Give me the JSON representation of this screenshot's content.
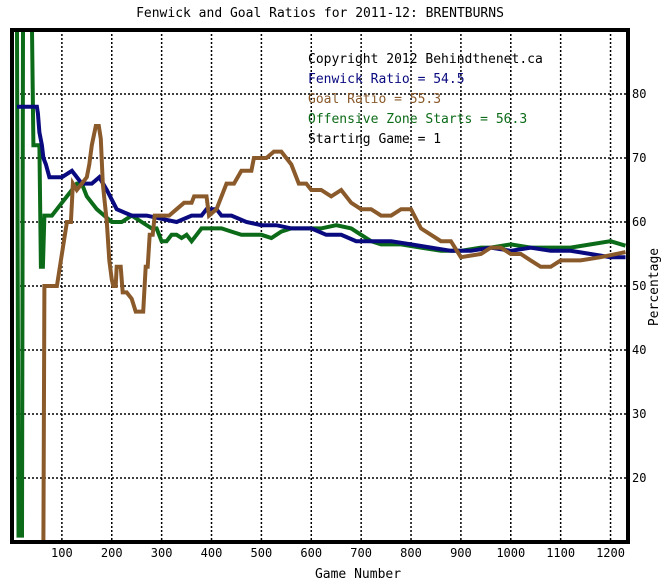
{
  "chart_data": {
    "type": "line",
    "title": "Fenwick and Goal Ratios for 2011-12: BRENTBURNS",
    "xlabel": "Game Number",
    "ylabel": "Percentage",
    "xlim": [
      0,
      1235
    ],
    "ylim": [
      10,
      90
    ],
    "x_ticks": [
      100,
      200,
      300,
      400,
      500,
      600,
      700,
      800,
      900,
      1000,
      1100,
      1200
    ],
    "y_ticks": [
      20,
      30,
      40,
      50,
      60,
      70,
      80
    ],
    "grid": true,
    "legend": [
      {
        "text": "Copyright 2012 Behindthenet.ca",
        "color": "#000000"
      },
      {
        "text": "Fenwick Ratio = 54.5",
        "color": "#0a0a80"
      },
      {
        "text": "Goal Ratio = 55.3",
        "color": "#8b5a2b"
      },
      {
        "text": "Offensive Zone Starts = 56.3",
        "color": "#0c6b18"
      },
      {
        "text": "Starting Game = 1",
        "color": "#000000"
      }
    ],
    "series": [
      {
        "name": "Fenwick Ratio",
        "color": "#0a0a80",
        "points": [
          [
            10,
            78
          ],
          [
            50,
            78
          ],
          [
            52,
            77
          ],
          [
            55,
            74
          ],
          [
            60,
            72
          ],
          [
            63,
            70
          ],
          [
            68,
            69
          ],
          [
            75,
            67
          ],
          [
            85,
            67
          ],
          [
            100,
            67
          ],
          [
            120,
            68
          ],
          [
            140,
            66
          ],
          [
            160,
            66
          ],
          [
            175,
            67
          ],
          [
            190,
            65
          ],
          [
            210,
            62
          ],
          [
            240,
            61
          ],
          [
            270,
            61
          ],
          [
            300,
            60.5
          ],
          [
            330,
            60
          ],
          [
            360,
            61
          ],
          [
            380,
            61
          ],
          [
            390,
            62
          ],
          [
            410,
            62
          ],
          [
            420,
            61
          ],
          [
            440,
            61
          ],
          [
            470,
            60
          ],
          [
            500,
            59.5
          ],
          [
            530,
            59.5
          ],
          [
            560,
            59
          ],
          [
            600,
            59
          ],
          [
            630,
            58
          ],
          [
            660,
            58
          ],
          [
            690,
            57
          ],
          [
            720,
            57
          ],
          [
            760,
            57
          ],
          [
            800,
            56.5
          ],
          [
            840,
            56
          ],
          [
            880,
            55.5
          ],
          [
            920,
            55.5
          ],
          [
            960,
            56
          ],
          [
            1000,
            55.5
          ],
          [
            1040,
            56
          ],
          [
            1080,
            55.5
          ],
          [
            1120,
            55.5
          ],
          [
            1160,
            55
          ],
          [
            1200,
            54.5
          ],
          [
            1230,
            54.5
          ]
        ]
      },
      {
        "name": "Goal Ratio",
        "color": "#8b5a2b",
        "points": [
          [
            60,
            10
          ],
          [
            63,
            10
          ],
          [
            65,
            50
          ],
          [
            90,
            50
          ],
          [
            100,
            55
          ],
          [
            110,
            60
          ],
          [
            118,
            60
          ],
          [
            122,
            66
          ],
          [
            130,
            65
          ],
          [
            140,
            66
          ],
          [
            150,
            67
          ],
          [
            155,
            69
          ],
          [
            160,
            72
          ],
          [
            168,
            75
          ],
          [
            174,
            75
          ],
          [
            178,
            73
          ],
          [
            182,
            66
          ],
          [
            190,
            60
          ],
          [
            195,
            54
          ],
          [
            200,
            51
          ],
          [
            203,
            50
          ],
          [
            208,
            50
          ],
          [
            210,
            53
          ],
          [
            218,
            53
          ],
          [
            222,
            49
          ],
          [
            230,
            49
          ],
          [
            240,
            48
          ],
          [
            248,
            46
          ],
          [
            258,
            46
          ],
          [
            263,
            46
          ],
          [
            268,
            53
          ],
          [
            272,
            53
          ],
          [
            276,
            58
          ],
          [
            282,
            58
          ],
          [
            286,
            61
          ],
          [
            300,
            61
          ],
          [
            315,
            61
          ],
          [
            330,
            62
          ],
          [
            345,
            63
          ],
          [
            360,
            63
          ],
          [
            365,
            64
          ],
          [
            390,
            64
          ],
          [
            395,
            61
          ],
          [
            410,
            62
          ],
          [
            430,
            66
          ],
          [
            445,
            66
          ],
          [
            460,
            68
          ],
          [
            480,
            68
          ],
          [
            485,
            70
          ],
          [
            510,
            70
          ],
          [
            525,
            71
          ],
          [
            540,
            71
          ],
          [
            550,
            70
          ],
          [
            560,
            69
          ],
          [
            575,
            66
          ],
          [
            590,
            66
          ],
          [
            600,
            65
          ],
          [
            620,
            65
          ],
          [
            640,
            64
          ],
          [
            660,
            65
          ],
          [
            680,
            63
          ],
          [
            700,
            62
          ],
          [
            720,
            62
          ],
          [
            740,
            61
          ],
          [
            760,
            61
          ],
          [
            780,
            62
          ],
          [
            800,
            62
          ],
          [
            820,
            59
          ],
          [
            840,
            58
          ],
          [
            860,
            57
          ],
          [
            880,
            57
          ],
          [
            900,
            54.5
          ],
          [
            940,
            55
          ],
          [
            960,
            56
          ],
          [
            980,
            56
          ],
          [
            1000,
            55
          ],
          [
            1020,
            55
          ],
          [
            1040,
            54
          ],
          [
            1060,
            53
          ],
          [
            1080,
            53
          ],
          [
            1100,
            54
          ],
          [
            1140,
            54
          ],
          [
            1180,
            54.5
          ],
          [
            1230,
            55.3
          ]
        ]
      },
      {
        "name": "Offensive Zone Starts",
        "color": "#0c6b18",
        "points": [
          [
            10,
            90
          ],
          [
            13,
            11
          ],
          [
            20,
            11
          ],
          [
            22,
            90
          ],
          [
            40,
            90
          ],
          [
            43,
            72
          ],
          [
            55,
            72
          ],
          [
            58,
            53
          ],
          [
            62,
            53
          ],
          [
            65,
            61
          ],
          [
            80,
            61
          ],
          [
            90,
            62
          ],
          [
            110,
            64
          ],
          [
            120,
            65
          ],
          [
            130,
            66
          ],
          [
            140,
            66
          ],
          [
            150,
            64
          ],
          [
            160,
            63
          ],
          [
            170,
            62
          ],
          [
            185,
            61
          ],
          [
            200,
            60
          ],
          [
            220,
            60
          ],
          [
            240,
            61
          ],
          [
            260,
            60
          ],
          [
            280,
            59
          ],
          [
            290,
            59
          ],
          [
            300,
            57
          ],
          [
            310,
            57
          ],
          [
            320,
            58
          ],
          [
            330,
            58
          ],
          [
            340,
            57.5
          ],
          [
            350,
            58
          ],
          [
            360,
            57
          ],
          [
            370,
            58
          ],
          [
            380,
            59
          ],
          [
            400,
            59
          ],
          [
            420,
            59
          ],
          [
            440,
            58.5
          ],
          [
            460,
            58
          ],
          [
            480,
            58
          ],
          [
            500,
            58
          ],
          [
            520,
            57.5
          ],
          [
            540,
            58.5
          ],
          [
            560,
            59
          ],
          [
            590,
            59
          ],
          [
            620,
            59
          ],
          [
            650,
            59.5
          ],
          [
            680,
            59
          ],
          [
            700,
            58
          ],
          [
            720,
            57
          ],
          [
            740,
            56.5
          ],
          [
            780,
            56.5
          ],
          [
            820,
            56
          ],
          [
            860,
            55.5
          ],
          [
            900,
            55.5
          ],
          [
            940,
            56
          ],
          [
            960,
            56
          ],
          [
            1000,
            56.5
          ],
          [
            1040,
            56
          ],
          [
            1080,
            56
          ],
          [
            1120,
            56
          ],
          [
            1160,
            56.5
          ],
          [
            1200,
            57
          ],
          [
            1230,
            56.3
          ]
        ]
      }
    ]
  }
}
